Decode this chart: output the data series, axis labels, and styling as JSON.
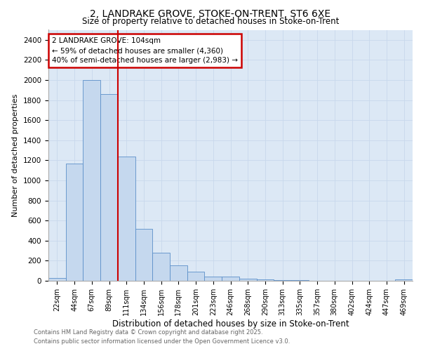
{
  "title_line1": "2, LANDRAKE GROVE, STOKE-ON-TRENT, ST6 6XE",
  "title_line2": "Size of property relative to detached houses in Stoke-on-Trent",
  "xlabel": "Distribution of detached houses by size in Stoke-on-Trent",
  "ylabel": "Number of detached properties",
  "categories": [
    "22sqm",
    "44sqm",
    "67sqm",
    "89sqm",
    "111sqm",
    "134sqm",
    "156sqm",
    "178sqm",
    "201sqm",
    "223sqm",
    "246sqm",
    "268sqm",
    "290sqm",
    "313sqm",
    "335sqm",
    "357sqm",
    "380sqm",
    "402sqm",
    "424sqm",
    "447sqm",
    "469sqm"
  ],
  "values": [
    25,
    1170,
    2000,
    1860,
    1240,
    520,
    280,
    155,
    90,
    45,
    45,
    20,
    15,
    5,
    5,
    2,
    2,
    2,
    0,
    0,
    15
  ],
  "bar_color": "#c5d8ee",
  "bar_edge_color": "#5b8fc9",
  "annotation_text": "2 LANDRAKE GROVE: 104sqm\n← 59% of detached houses are smaller (4,360)\n40% of semi-detached houses are larger (2,983) →",
  "annotation_box_color": "#ffffff",
  "annotation_box_edge": "#cc0000",
  "red_line_color": "#cc0000",
  "red_line_index": 4,
  "ylim": [
    0,
    2500
  ],
  "yticks": [
    0,
    200,
    400,
    600,
    800,
    1000,
    1200,
    1400,
    1600,
    1800,
    2000,
    2200,
    2400
  ],
  "grid_color": "#c8d8ec",
  "background_color": "#dce8f5",
  "footer_line1": "Contains HM Land Registry data © Crown copyright and database right 2025.",
  "footer_line2": "Contains public sector information licensed under the Open Government Licence v3.0."
}
